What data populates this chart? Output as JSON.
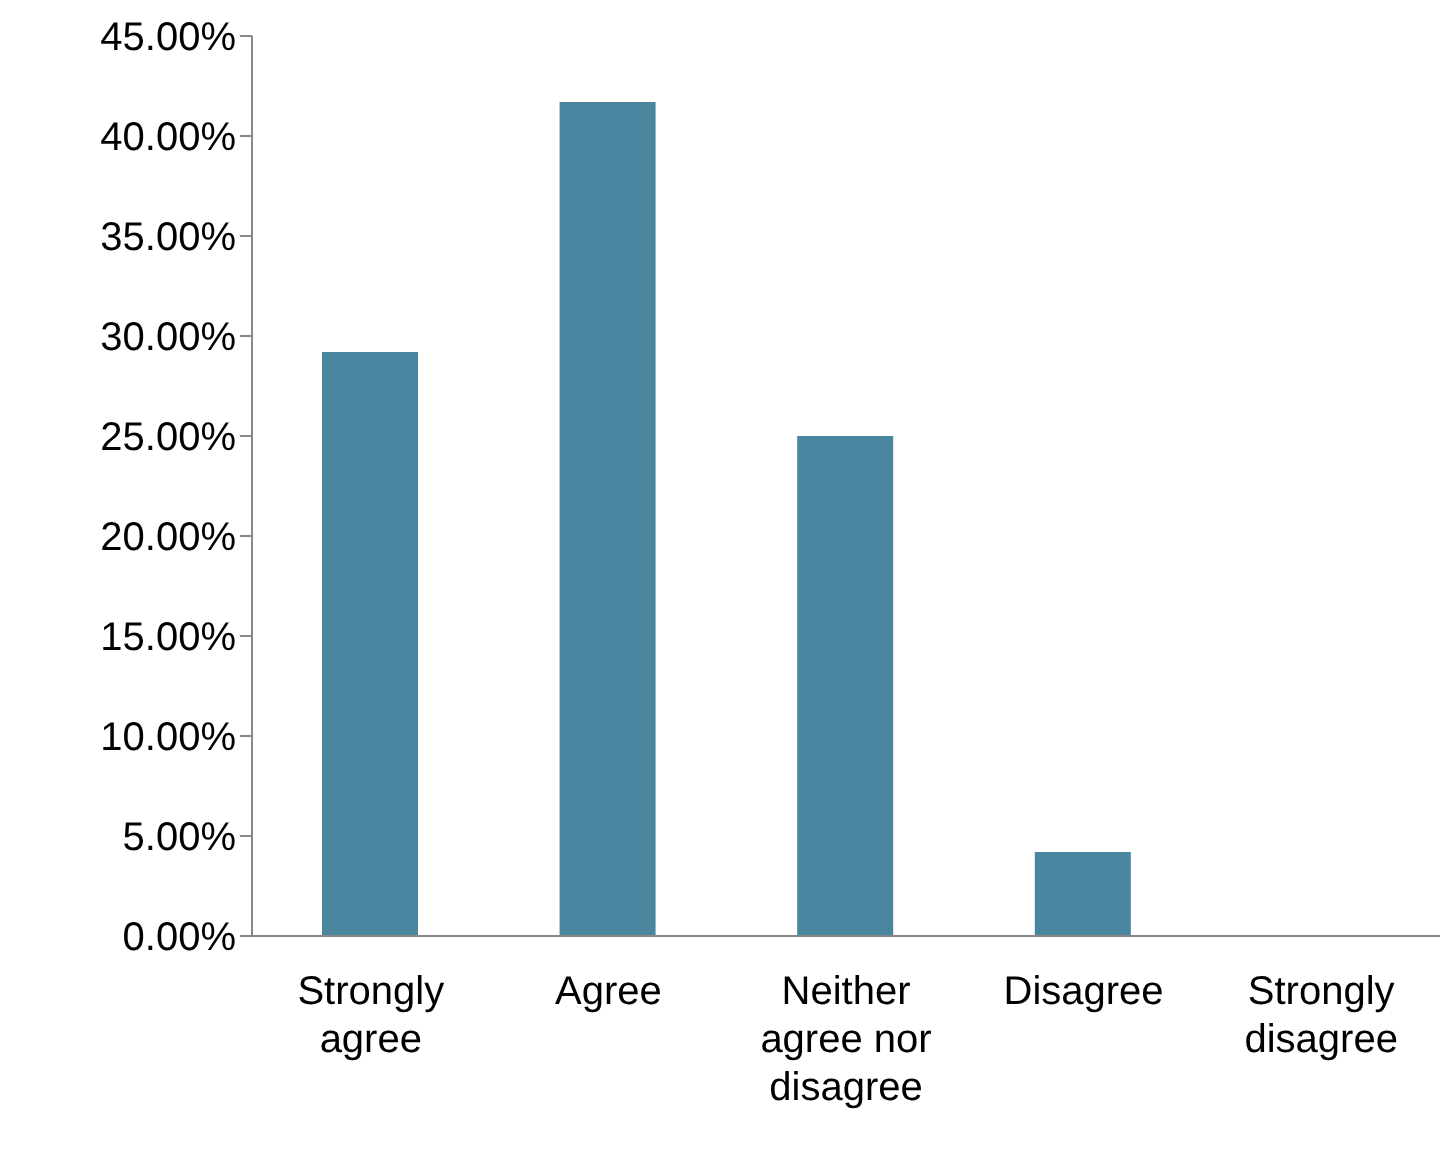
{
  "chart_data": {
    "type": "bar",
    "categories": [
      "Strongly agree",
      "Agree",
      "Neither agree nor disagree",
      "Disagree",
      "Strongly disagree"
    ],
    "values": [
      29.2,
      41.7,
      25.0,
      4.2,
      0
    ],
    "color": "#4a86a0",
    "ylim": [
      0,
      45
    ],
    "yticks": [
      {
        "value": 0,
        "label": "0.00%"
      },
      {
        "value": 5,
        "label": "5.00%"
      },
      {
        "value": 10,
        "label": "10.00%"
      },
      {
        "value": 15,
        "label": "15.00%"
      },
      {
        "value": 20,
        "label": "20.00%"
      },
      {
        "value": 25,
        "label": "25.00%"
      },
      {
        "value": 30,
        "label": "30.00%"
      },
      {
        "value": 35,
        "label": "35.00%"
      },
      {
        "value": 40,
        "label": "40.00%"
      },
      {
        "value": 45,
        "label": "45.00%"
      }
    ],
    "grid": false,
    "legend": false
  }
}
